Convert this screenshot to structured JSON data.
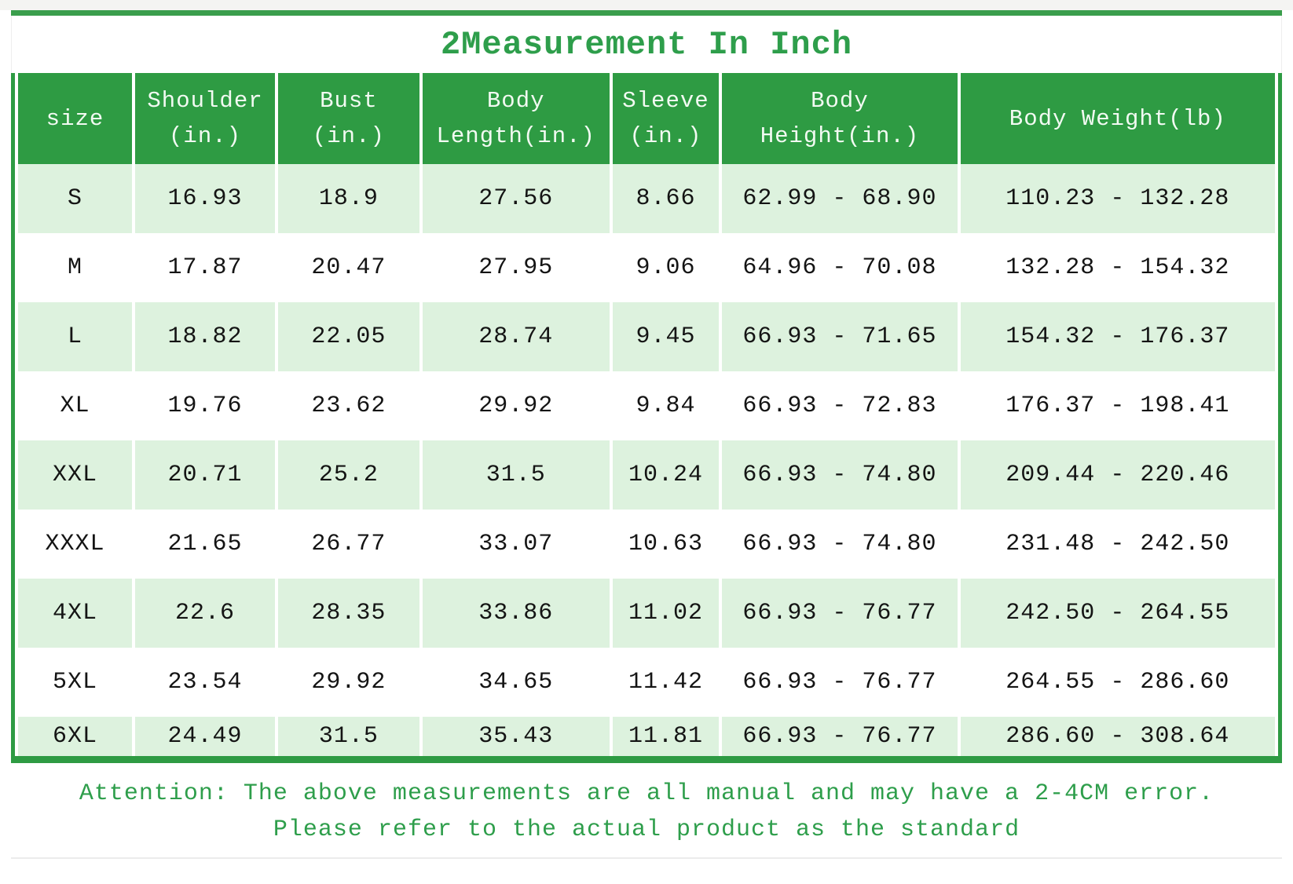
{
  "title": "2Measurement In Inch",
  "table": {
    "headers": [
      "size",
      "Shoulder\n(in.)",
      "Bust\n(in.)",
      "Body\nLength(in.)",
      "Sleeve\n(in.)",
      "Body\nHeight(in.)",
      "Body Weight(lb)"
    ],
    "rows": [
      [
        "S",
        "16.93",
        "18.9",
        "27.56",
        "8.66",
        "62.99 - 68.90",
        "110.23 - 132.28"
      ],
      [
        "M",
        "17.87",
        "20.47",
        "27.95",
        "9.06",
        "64.96 - 70.08",
        "132.28 - 154.32"
      ],
      [
        "L",
        "18.82",
        "22.05",
        "28.74",
        "9.45",
        "66.93 - 71.65",
        "154.32 - 176.37"
      ],
      [
        "XL",
        "19.76",
        "23.62",
        "29.92",
        "9.84",
        "66.93 - 72.83",
        "176.37 - 198.41"
      ],
      [
        "XXL",
        "20.71",
        "25.2",
        "31.5",
        "10.24",
        "66.93 - 74.80",
        "209.44 - 220.46"
      ],
      [
        "XXXL",
        "21.65",
        "26.77",
        "33.07",
        "10.63",
        "66.93 - 74.80",
        "231.48 - 242.50"
      ],
      [
        "4XL",
        "22.6",
        "28.35",
        "33.86",
        "11.02",
        "66.93 - 76.77",
        "242.50 - 264.55"
      ],
      [
        "5XL",
        "23.54",
        "29.92",
        "34.65",
        "11.42",
        "66.93 - 76.77",
        "264.55 - 286.60"
      ],
      [
        "6XL",
        "24.49",
        "31.5",
        "35.43",
        "11.81",
        "66.93 - 76.77",
        "286.60 - 308.64"
      ]
    ]
  },
  "note": {
    "line1": "Attention: The above measurements are all manual and may have a 2-4CM error.",
    "line2": "Please refer to the actual product as the standard"
  },
  "colors": {
    "header_green": "#2e9b43",
    "accent_green": "#2e9e4b",
    "row_light_green": "#ddf2de",
    "row_white": "#ffffff",
    "cell_text": "#141414"
  }
}
